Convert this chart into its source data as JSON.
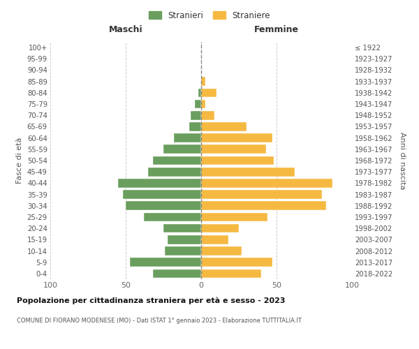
{
  "age_groups": [
    "0-4",
    "5-9",
    "10-14",
    "15-19",
    "20-24",
    "25-29",
    "30-34",
    "35-39",
    "40-44",
    "45-49",
    "50-54",
    "55-59",
    "60-64",
    "65-69",
    "70-74",
    "75-79",
    "80-84",
    "85-89",
    "90-94",
    "95-99",
    "100+"
  ],
  "birth_years": [
    "2018-2022",
    "2013-2017",
    "2008-2012",
    "2003-2007",
    "1998-2002",
    "1993-1997",
    "1988-1992",
    "1983-1987",
    "1978-1982",
    "1973-1977",
    "1968-1972",
    "1963-1967",
    "1958-1962",
    "1953-1957",
    "1948-1952",
    "1943-1947",
    "1938-1942",
    "1933-1937",
    "1928-1932",
    "1923-1927",
    "≤ 1922"
  ],
  "males": [
    32,
    47,
    24,
    22,
    25,
    38,
    50,
    52,
    55,
    35,
    32,
    25,
    18,
    8,
    7,
    4,
    2,
    0,
    0,
    0,
    0
  ],
  "females": [
    40,
    47,
    27,
    18,
    25,
    44,
    83,
    80,
    87,
    62,
    48,
    43,
    47,
    30,
    9,
    3,
    10,
    3,
    0,
    0,
    0
  ],
  "color_males": "#6a9e5e",
  "color_females": "#f5b942",
  "title_main": "Popolazione per cittadinanza straniera per età e sesso - 2023",
  "title_sub": "COMUNE DI FIORANO MODENESE (MO) - Dati ISTAT 1° gennaio 2023 - Elaborazione TUTTITALIA.IT",
  "xlabel_left": "Maschi",
  "xlabel_right": "Femmine",
  "ylabel_left": "Fasce di età",
  "ylabel_right": "Anni di nascita",
  "legend_males": "Stranieri",
  "legend_females": "Straniere",
  "xlim": 100,
  "background_color": "#ffffff",
  "grid_color": "#cccccc"
}
